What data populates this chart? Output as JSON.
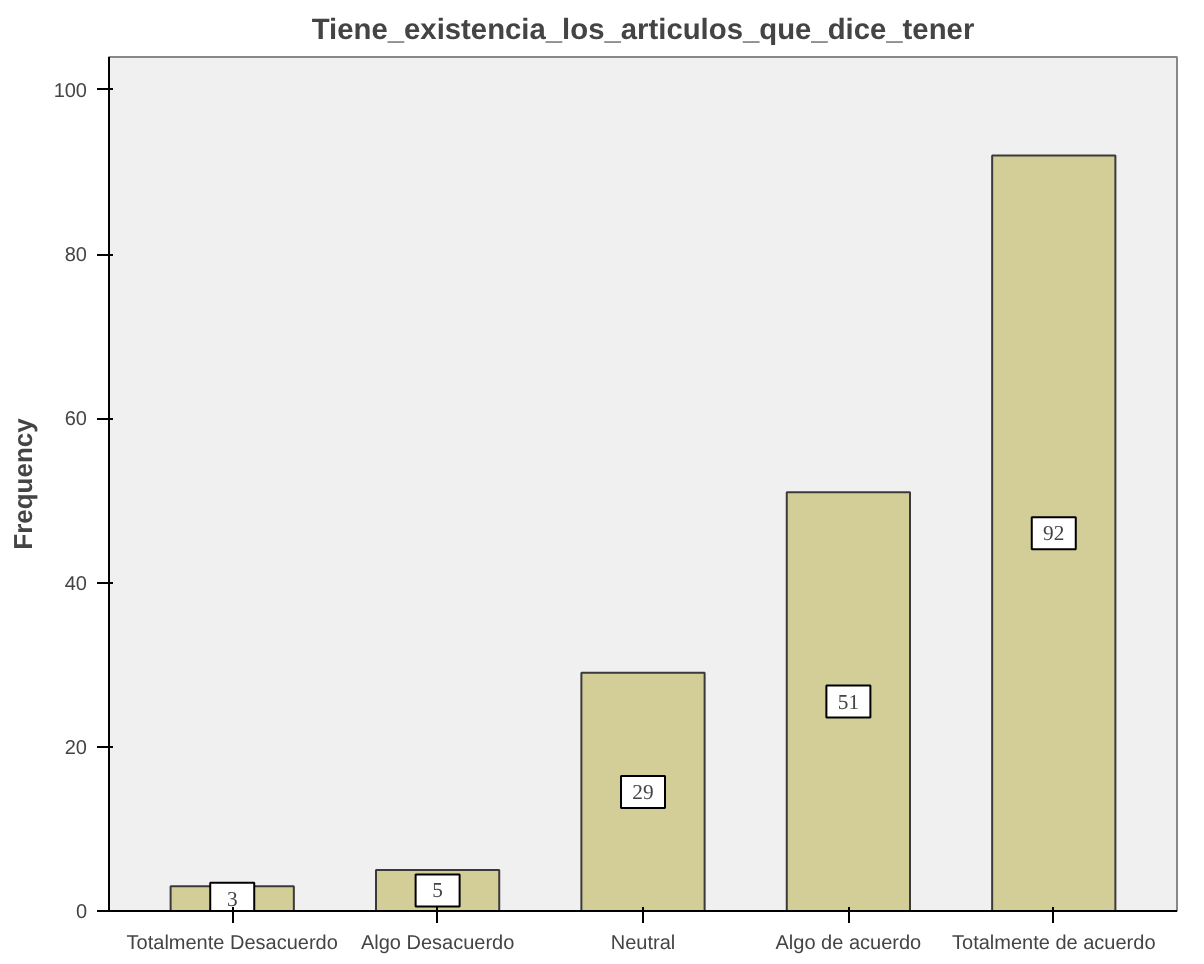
{
  "chart_data": {
    "type": "bar",
    "title": "Tiene_existencia_los_articulos_que_dice_tener",
    "ylabel": "Frequency",
    "categories": [
      "Totalmente Desacuerdo",
      "Algo Desacuerdo",
      "Neutral",
      "Algo de acuerdo",
      "Totalmente de acuerdo"
    ],
    "values": [
      3,
      5,
      29,
      51,
      92
    ],
    "color": "#d3ce97",
    "ylim": [
      0,
      104
    ],
    "yticks": [
      0,
      20,
      40,
      60,
      80,
      100
    ],
    "grid": false,
    "data_labels": true
  }
}
